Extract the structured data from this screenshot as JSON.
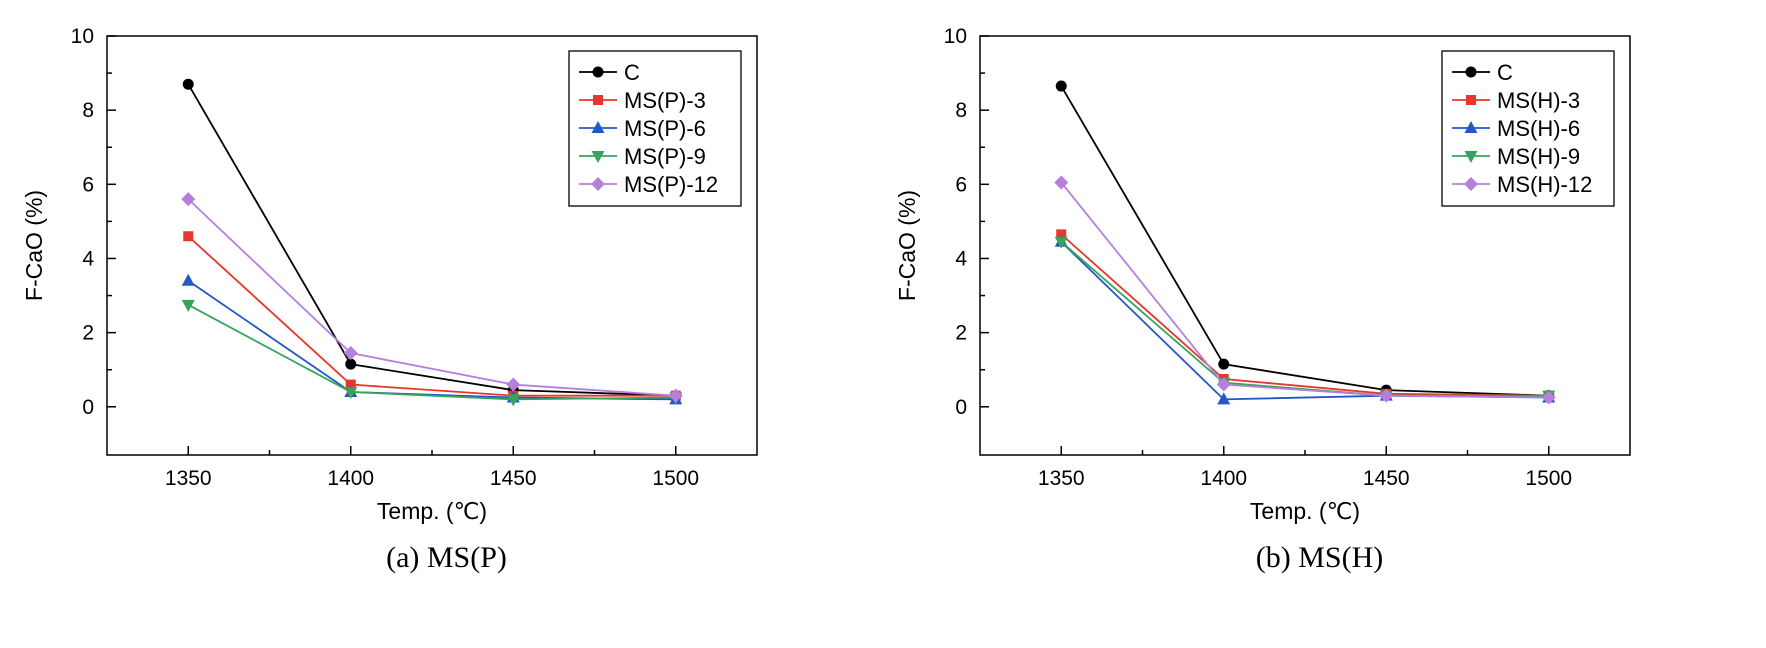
{
  "page": {
    "background": "#ffffff"
  },
  "chart_data": [
    {
      "type": "line",
      "title": "",
      "xlabel": "Temp. (℃)",
      "ylabel": "F-CaO (%)",
      "caption": "(a) MS(P)",
      "grid": false,
      "legend_position": "top-right",
      "x": [
        1350,
        1400,
        1450,
        1500
      ],
      "xlim": [
        1325,
        1525
      ],
      "ylim": [
        -1.3,
        10
      ],
      "xticks": [
        1350,
        1400,
        1450,
        1500
      ],
      "x_minor_ticks": [
        1375,
        1425,
        1475
      ],
      "yticks": [
        0,
        2,
        4,
        6,
        8,
        10
      ],
      "y_minor_ticks": [
        1,
        3,
        5,
        7,
        9
      ],
      "series": [
        {
          "name": "C",
          "marker": "circle",
          "color": "#000000",
          "values": [
            8.7,
            1.15,
            0.45,
            0.3
          ]
        },
        {
          "name": "MS(P)-3",
          "marker": "square",
          "color": "#e8362c",
          "values": [
            4.6,
            0.6,
            0.3,
            0.3
          ]
        },
        {
          "name": "MS(P)-6",
          "marker": "triangle-up",
          "color": "#2458c6",
          "values": [
            3.4,
            0.4,
            0.25,
            0.2
          ]
        },
        {
          "name": "MS(P)-9",
          "marker": "triangle-down",
          "color": "#36a35e",
          "values": [
            2.75,
            0.4,
            0.2,
            0.25
          ]
        },
        {
          "name": "MS(P)-12",
          "marker": "diamond",
          "color": "#b77fdc",
          "values": [
            5.6,
            1.45,
            0.6,
            0.3
          ]
        }
      ]
    },
    {
      "type": "line",
      "title": "",
      "xlabel": "Temp. (℃)",
      "ylabel": "F-CaO (%)",
      "caption": "(b) MS(H)",
      "grid": false,
      "legend_position": "top-right",
      "x": [
        1350,
        1400,
        1450,
        1500
      ],
      "xlim": [
        1325,
        1525
      ],
      "ylim": [
        -1.3,
        10
      ],
      "xticks": [
        1350,
        1400,
        1450,
        1500
      ],
      "x_minor_ticks": [
        1375,
        1425,
        1475
      ],
      "yticks": [
        0,
        2,
        4,
        6,
        8,
        10
      ],
      "y_minor_ticks": [
        1,
        3,
        5,
        7,
        9
      ],
      "series": [
        {
          "name": "C",
          "marker": "circle",
          "color": "#000000",
          "values": [
            8.65,
            1.15,
            0.45,
            0.3
          ]
        },
        {
          "name": "MS(H)-3",
          "marker": "square",
          "color": "#e8362c",
          "values": [
            4.65,
            0.75,
            0.35,
            0.3
          ]
        },
        {
          "name": "MS(H)-6",
          "marker": "triangle-up",
          "color": "#2458c6",
          "values": [
            4.45,
            0.2,
            0.3,
            0.25
          ]
        },
        {
          "name": "MS(H)-9",
          "marker": "triangle-down",
          "color": "#36a35e",
          "values": [
            4.45,
            0.65,
            0.3,
            0.3
          ]
        },
        {
          "name": "MS(H)-12",
          "marker": "diamond",
          "color": "#b77fdc",
          "values": [
            6.05,
            0.6,
            0.3,
            0.25
          ]
        }
      ]
    }
  ]
}
